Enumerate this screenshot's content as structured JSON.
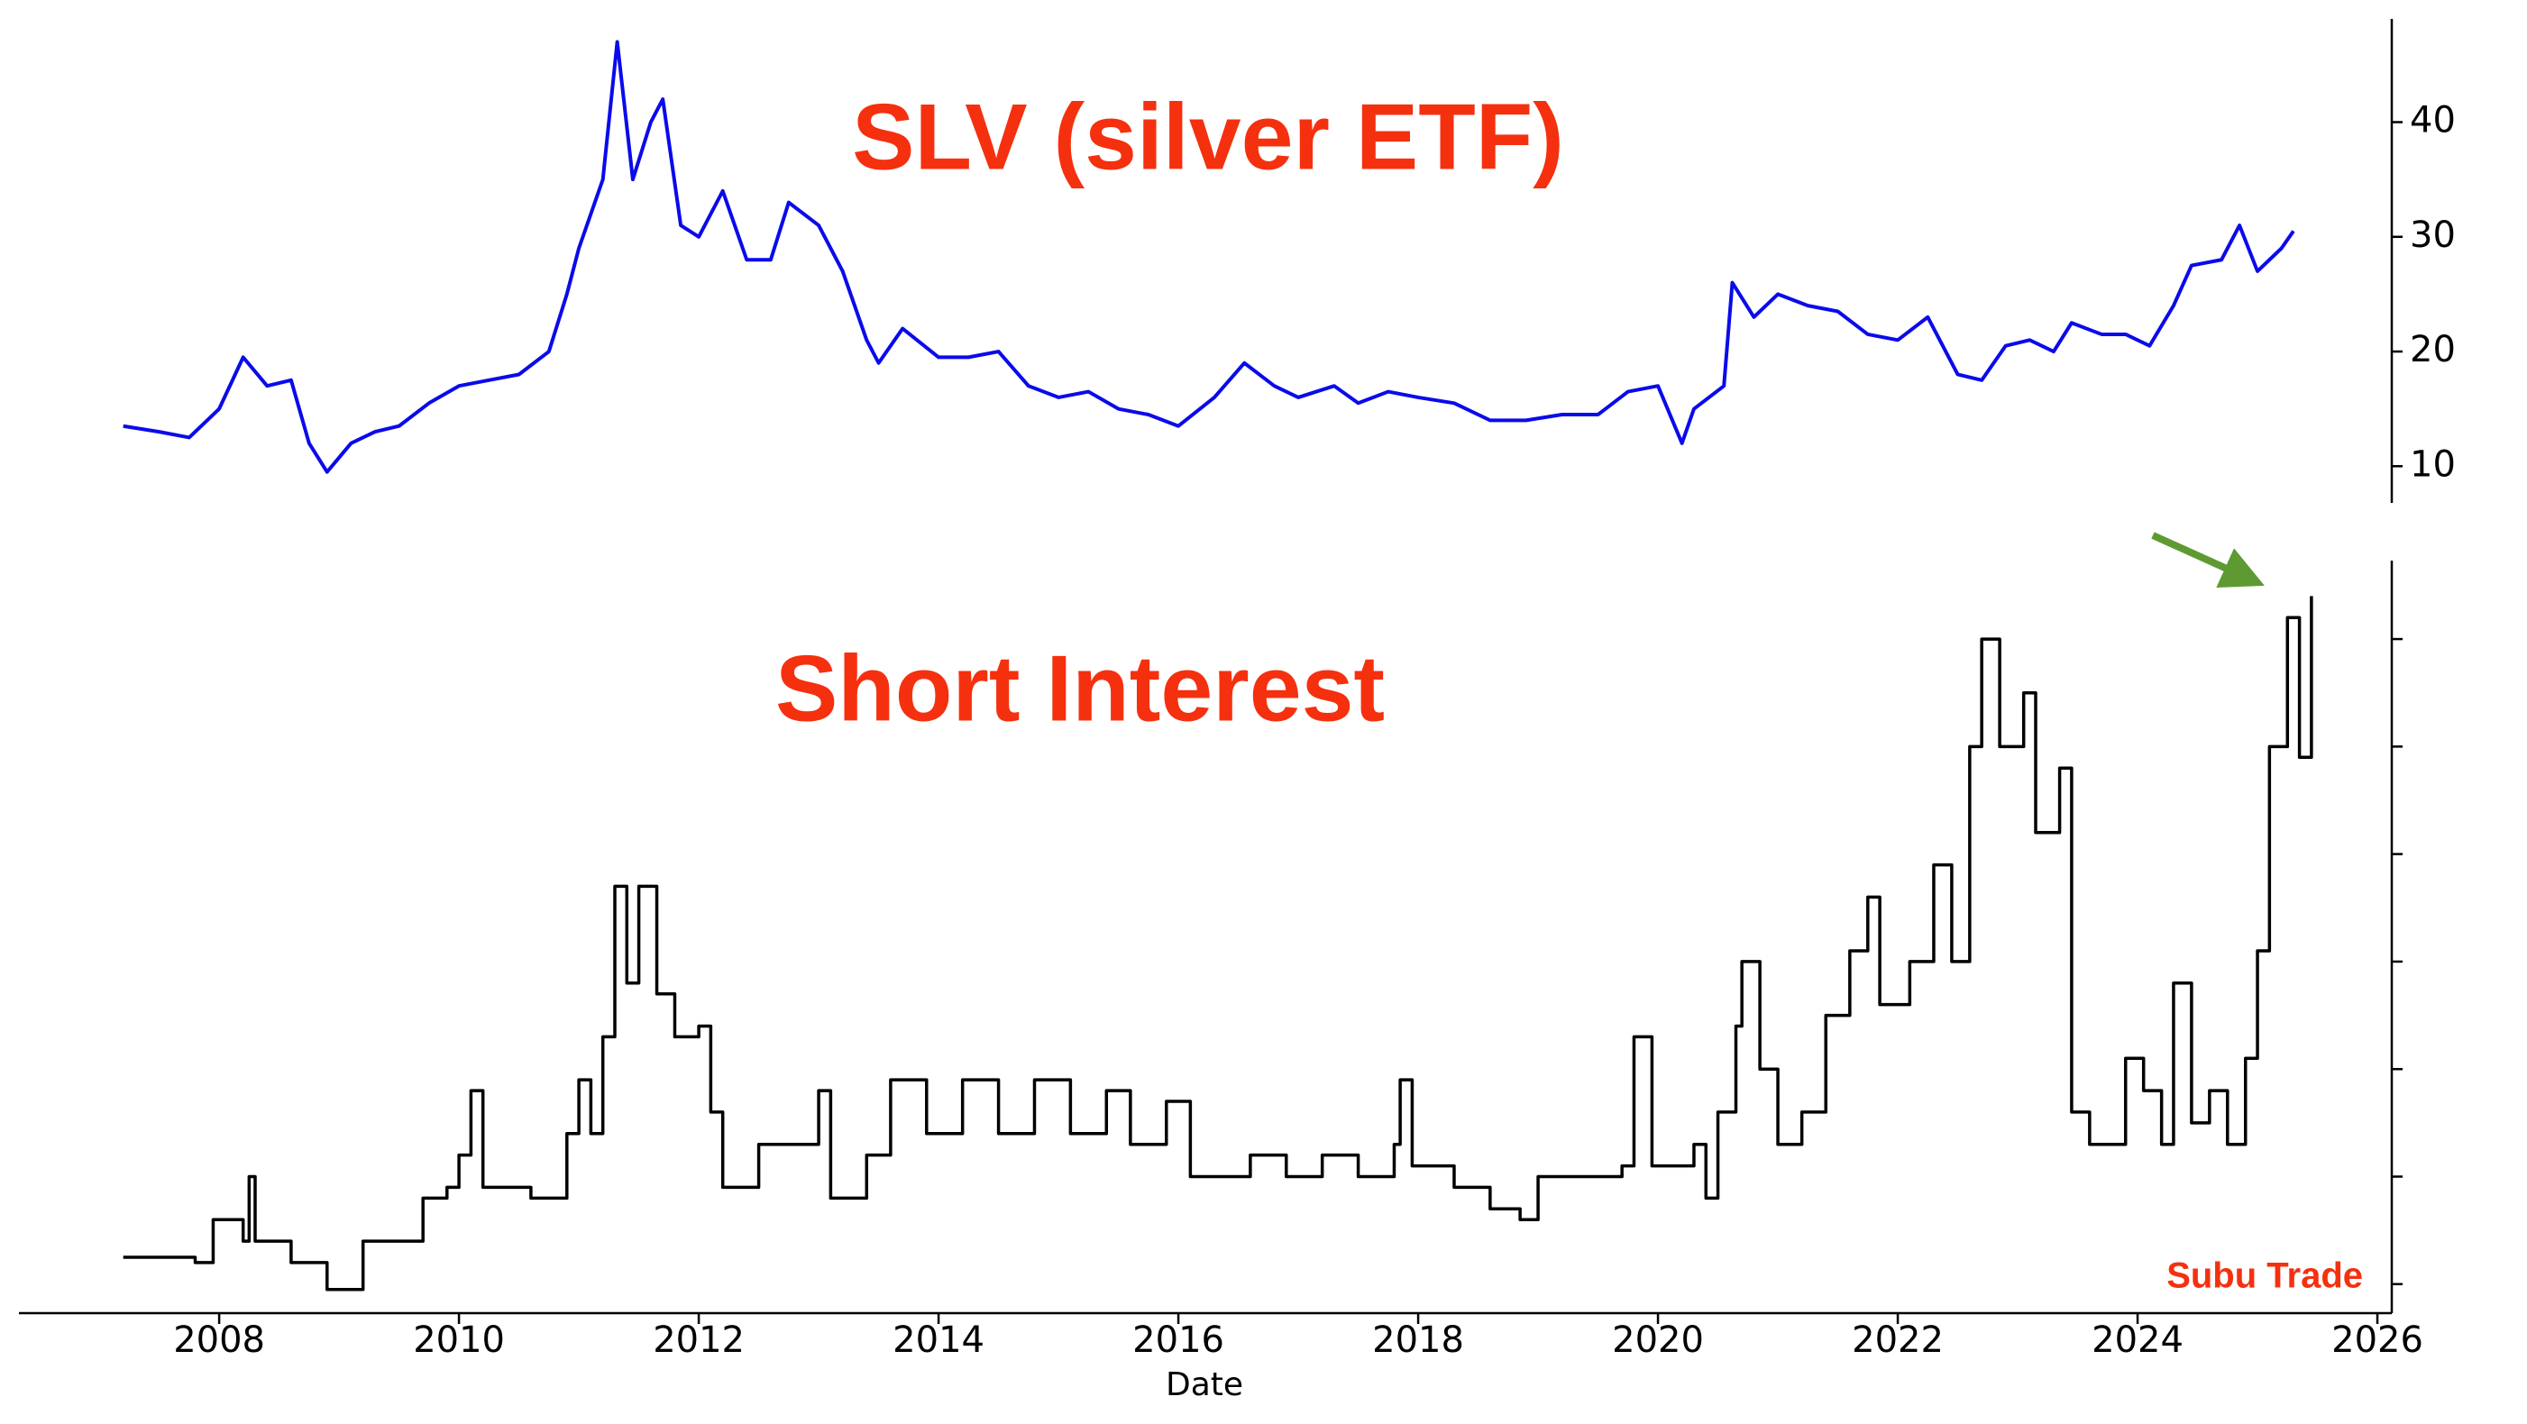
{
  "chart_data": [
    {
      "type": "line",
      "title": "SLV (silver ETF)",
      "color": "#0a0aeb",
      "xlim": [
        2006.33,
        2026.12
      ],
      "ylim": [
        6.8,
        49
      ],
      "yticks": [
        10,
        20,
        30,
        40
      ],
      "y_axis_side": "right",
      "x": [
        2007.2,
        2007.5,
        2007.75,
        2008.0,
        2008.2,
        2008.4,
        2008.6,
        2008.75,
        2008.9,
        2009.1,
        2009.3,
        2009.5,
        2009.75,
        2010.0,
        2010.25,
        2010.5,
        2010.75,
        2010.9,
        2011.0,
        2011.2,
        2011.32,
        2011.45,
        2011.6,
        2011.7,
        2011.85,
        2012.0,
        2012.2,
        2012.4,
        2012.6,
        2012.75,
        2013.0,
        2013.2,
        2013.4,
        2013.5,
        2013.7,
        2014.0,
        2014.25,
        2014.5,
        2014.75,
        2015.0,
        2015.25,
        2015.5,
        2015.75,
        2016.0,
        2016.3,
        2016.55,
        2016.8,
        2017.0,
        2017.3,
        2017.5,
        2017.75,
        2018.0,
        2018.3,
        2018.6,
        2018.9,
        2019.2,
        2019.5,
        2019.75,
        2020.0,
        2020.2,
        2020.3,
        2020.55,
        2020.62,
        2020.8,
        2021.0,
        2021.25,
        2021.5,
        2021.75,
        2022.0,
        2022.25,
        2022.5,
        2022.7,
        2022.9,
        2023.1,
        2023.3,
        2023.45,
        2023.7,
        2023.9,
        2024.1,
        2024.3,
        2024.45,
        2024.7,
        2024.85,
        2025.0,
        2025.2,
        2025.3
      ],
      "values": [
        13.5,
        13,
        12.5,
        15,
        19.5,
        17,
        17.5,
        12,
        9.5,
        12,
        13,
        13.5,
        15.5,
        17,
        17.5,
        18,
        20,
        25,
        29,
        35,
        47,
        35,
        40,
        42,
        31,
        30,
        34,
        28,
        28,
        33,
        31,
        27,
        21,
        19,
        22,
        19.5,
        19.5,
        20,
        17,
        16,
        16.5,
        15,
        14.5,
        13.5,
        16,
        19,
        17,
        16,
        17,
        15.5,
        16.5,
        16,
        15.5,
        14,
        14,
        14.5,
        14.5,
        16.5,
        17,
        12,
        15,
        17,
        26,
        23,
        25,
        24,
        23.5,
        21.5,
        21,
        23,
        18,
        17.5,
        20.5,
        21,
        20,
        22.5,
        21.5,
        21.5,
        20.5,
        24,
        27.5,
        28,
        31,
        27,
        29,
        30.5
      ]
    },
    {
      "type": "line",
      "title": "Short Interest",
      "color": "#000000",
      "drawstyle": "steps-post",
      "annotation": "Subu Trade",
      "xlabel": "Date",
      "xlim": [
        2006.33,
        2026.12
      ],
      "xticks": [
        2008,
        2010,
        2012,
        2014,
        2016,
        2018,
        2020,
        2022,
        2024,
        2026
      ],
      "ylim": [
        -0.27,
        6.73
      ],
      "yticks": [
        0,
        1,
        2,
        3,
        4,
        5,
        6
      ],
      "y_axis_side": "right",
      "x": [
        2007.2,
        2007.8,
        2007.95,
        2008.2,
        2008.25,
        2008.3,
        2008.6,
        2008.9,
        2009.2,
        2009.5,
        2009.7,
        2009.9,
        2010.0,
        2010.1,
        2010.2,
        2010.6,
        2010.9,
        2011.0,
        2011.1,
        2011.2,
        2011.3,
        2011.4,
        2011.5,
        2011.65,
        2011.8,
        2012.0,
        2012.1,
        2012.2,
        2012.5,
        2012.9,
        2013.0,
        2013.1,
        2013.4,
        2013.6,
        2013.9,
        2014.2,
        2014.5,
        2014.8,
        2015.1,
        2015.4,
        2015.6,
        2015.9,
        2016.1,
        2016.4,
        2016.6,
        2016.9,
        2017.2,
        2017.5,
        2017.8,
        2017.85,
        2017.95,
        2018.3,
        2018.6,
        2018.85,
        2019.0,
        2019.4,
        2019.7,
        2019.8,
        2019.95,
        2020.3,
        2020.4,
        2020.5,
        2020.65,
        2020.7,
        2020.85,
        2021.0,
        2021.2,
        2021.4,
        2021.6,
        2021.75,
        2021.85,
        2022.1,
        2022.3,
        2022.45,
        2022.6,
        2022.7,
        2022.85,
        2023.05,
        2023.15,
        2023.35,
        2023.45,
        2023.6,
        2023.9,
        2024.05,
        2024.2,
        2024.3,
        2024.45,
        2024.6,
        2024.75,
        2024.9,
        2025.0,
        2025.1,
        2025.25,
        2025.35,
        2025.45
      ],
      "values": [
        0.25,
        0.2,
        0.6,
        0.4,
        1.0,
        0.4,
        0.2,
        -0.05,
        0.4,
        0.4,
        0.8,
        0.9,
        1.2,
        1.8,
        0.9,
        0.8,
        1.4,
        1.9,
        1.4,
        2.3,
        3.7,
        2.8,
        3.7,
        2.7,
        2.3,
        2.4,
        1.6,
        0.9,
        1.3,
        1.3,
        1.8,
        0.8,
        1.2,
        1.9,
        1.4,
        1.9,
        1.4,
        1.9,
        1.4,
        1.8,
        1.3,
        1.7,
        1.0,
        1.0,
        1.2,
        1.0,
        1.2,
        1.0,
        1.3,
        1.9,
        1.1,
        0.9,
        0.7,
        0.6,
        1.0,
        1.0,
        1.1,
        2.3,
        1.1,
        1.3,
        0.8,
        1.6,
        2.4,
        3.0,
        2.0,
        1.3,
        1.6,
        2.5,
        3.1,
        3.6,
        2.6,
        3.0,
        3.9,
        3.0,
        5.0,
        6.0,
        5.0,
        5.5,
        4.2,
        4.8,
        1.6,
        1.3,
        2.1,
        1.8,
        1.3,
        2.8,
        1.5,
        1.8,
        1.3,
        2.1,
        3.1,
        5.0,
        6.2,
        4.9,
        6.4
      ]
    }
  ]
}
